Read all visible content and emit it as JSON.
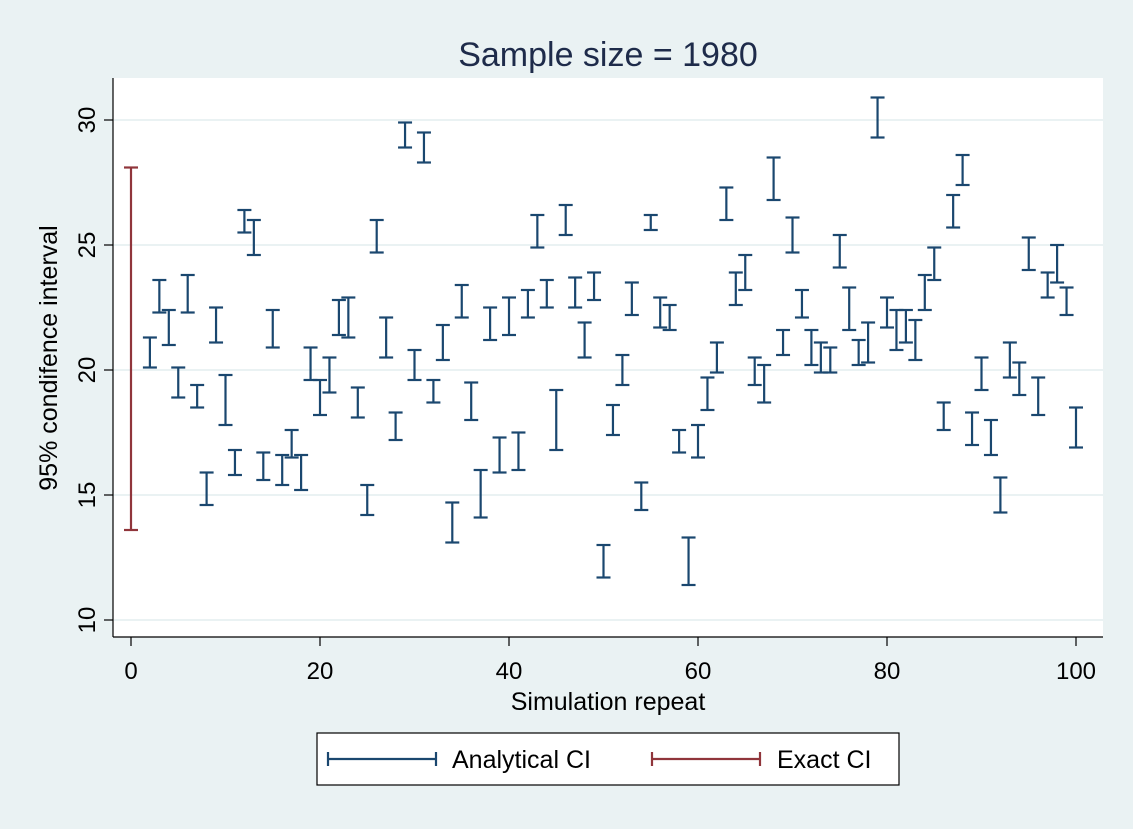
{
  "chart_data": {
    "type": "errorbar",
    "title": "Sample size = 1980",
    "xlabel": "Simulation repeat",
    "ylabel": "95% condifence interval",
    "xlim": [
      0,
      101
    ],
    "ylim": [
      10,
      31
    ],
    "xticks": [
      0,
      20,
      40,
      60,
      80,
      100
    ],
    "yticks": [
      10,
      15,
      20,
      25,
      30
    ],
    "grid": true,
    "legend_position": "bottom",
    "colors": {
      "background": "#eaf2f3",
      "plot_background": "#ffffff",
      "analytical": "#1a476f",
      "exact": "#90353b",
      "grid": "#eaf2f3"
    },
    "series": [
      {
        "name": "Analytical CI",
        "points": [
          [
            2,
            20.1,
            21.3
          ],
          [
            3,
            22.3,
            23.6
          ],
          [
            4,
            21.0,
            22.4
          ],
          [
            5,
            18.9,
            20.1
          ],
          [
            6,
            22.3,
            23.8
          ],
          [
            7,
            18.5,
            19.4
          ],
          [
            8,
            14.6,
            15.9
          ],
          [
            9,
            21.1,
            22.5
          ],
          [
            10,
            17.8,
            19.8
          ],
          [
            11,
            15.8,
            16.8
          ],
          [
            12,
            25.5,
            26.4
          ],
          [
            13,
            24.6,
            26.0
          ],
          [
            14,
            15.6,
            16.7
          ],
          [
            15,
            20.9,
            22.4
          ],
          [
            16,
            15.4,
            16.6
          ],
          [
            17,
            16.5,
            17.6
          ],
          [
            18,
            15.2,
            16.6
          ],
          [
            19,
            19.6,
            20.9
          ],
          [
            20,
            18.2,
            19.6
          ],
          [
            21,
            19.1,
            20.5
          ],
          [
            22,
            21.4,
            22.8
          ],
          [
            23,
            21.3,
            22.9
          ],
          [
            24,
            18.1,
            19.3
          ],
          [
            25,
            14.2,
            15.4
          ],
          [
            26,
            24.7,
            26.0
          ],
          [
            27,
            20.5,
            22.1
          ],
          [
            28,
            17.2,
            18.3
          ],
          [
            29,
            28.9,
            29.9
          ],
          [
            30,
            19.6,
            20.8
          ],
          [
            31,
            28.3,
            29.5
          ],
          [
            32,
            18.7,
            19.6
          ],
          [
            33,
            20.4,
            21.8
          ],
          [
            34,
            13.1,
            14.7
          ],
          [
            35,
            22.1,
            23.4
          ],
          [
            36,
            18.0,
            19.5
          ],
          [
            37,
            14.1,
            16.0
          ],
          [
            38,
            21.2,
            22.5
          ],
          [
            39,
            15.9,
            17.3
          ],
          [
            40,
            21.4,
            22.9
          ],
          [
            41,
            16.0,
            17.5
          ],
          [
            42,
            22.1,
            23.2
          ],
          [
            43,
            24.9,
            26.2
          ],
          [
            44,
            22.5,
            23.6
          ],
          [
            45,
            16.8,
            19.2
          ],
          [
            46,
            25.4,
            26.6
          ],
          [
            47,
            22.5,
            23.7
          ],
          [
            48,
            20.5,
            21.9
          ],
          [
            49,
            22.8,
            23.9
          ],
          [
            50,
            11.7,
            13.0
          ],
          [
            51,
            17.4,
            18.6
          ],
          [
            52,
            19.4,
            20.6
          ],
          [
            53,
            22.2,
            23.5
          ],
          [
            54,
            14.4,
            15.5
          ],
          [
            55,
            25.6,
            26.2
          ],
          [
            56,
            21.7,
            22.9
          ],
          [
            57,
            21.6,
            22.6
          ],
          [
            58,
            16.7,
            17.6
          ],
          [
            59,
            11.4,
            13.3
          ],
          [
            60,
            16.5,
            17.8
          ],
          [
            61,
            18.4,
            19.7
          ],
          [
            62,
            19.9,
            21.1
          ],
          [
            63,
            26.0,
            27.3
          ],
          [
            64,
            22.6,
            23.9
          ],
          [
            65,
            23.2,
            24.6
          ],
          [
            66,
            19.4,
            20.5
          ],
          [
            67,
            18.7,
            20.2
          ],
          [
            68,
            26.8,
            28.5
          ],
          [
            69,
            20.6,
            21.6
          ],
          [
            70,
            24.7,
            26.1
          ],
          [
            71,
            22.1,
            23.2
          ],
          [
            72,
            20.2,
            21.6
          ],
          [
            73,
            19.9,
            21.1
          ],
          [
            74,
            19.9,
            20.9
          ],
          [
            75,
            24.1,
            25.4
          ],
          [
            76,
            21.6,
            23.3
          ],
          [
            77,
            20.2,
            21.2
          ],
          [
            78,
            20.3,
            21.9
          ],
          [
            79,
            29.3,
            30.9
          ],
          [
            80,
            21.7,
            22.9
          ],
          [
            81,
            20.8,
            22.4
          ],
          [
            82,
            21.1,
            22.4
          ],
          [
            83,
            20.4,
            22.0
          ],
          [
            84,
            22.4,
            23.8
          ],
          [
            85,
            23.6,
            24.9
          ],
          [
            86,
            17.6,
            18.7
          ],
          [
            87,
            25.7,
            27.0
          ],
          [
            88,
            27.4,
            28.6
          ],
          [
            89,
            17.0,
            18.3
          ],
          [
            90,
            19.2,
            20.5
          ],
          [
            91,
            16.6,
            18.0
          ],
          [
            92,
            14.3,
            15.7
          ],
          [
            93,
            19.7,
            21.1
          ],
          [
            94,
            19.0,
            20.3
          ],
          [
            95,
            24.0,
            25.3
          ],
          [
            96,
            18.2,
            19.7
          ],
          [
            97,
            22.9,
            23.9
          ],
          [
            98,
            23.5,
            25.0
          ],
          [
            99,
            22.2,
            23.3
          ],
          [
            100,
            16.9,
            18.5
          ]
        ]
      },
      {
        "name": "Exact CI",
        "points": [
          [
            0,
            13.6,
            28.1
          ]
        ]
      }
    ]
  }
}
